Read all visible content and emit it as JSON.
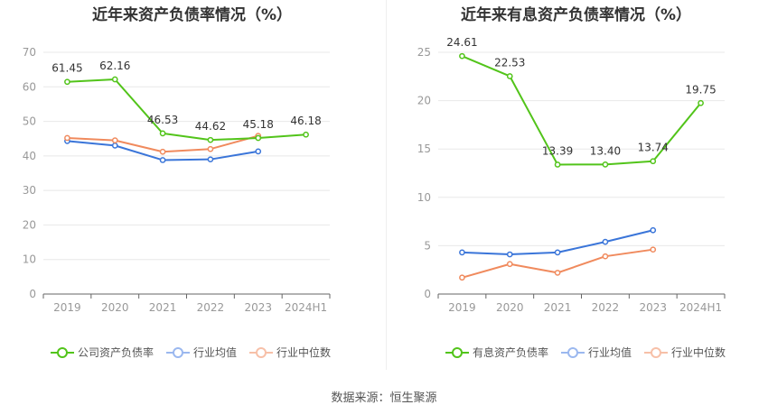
{
  "chart_data": [
    {
      "type": "line",
      "title": "近年来资产负债率情况（%）",
      "categories": [
        "2019",
        "2020",
        "2021",
        "2022",
        "2023",
        "2024H1"
      ],
      "ylim": [
        0,
        70
      ],
      "yticks": [
        0,
        10,
        20,
        30,
        40,
        50,
        60,
        70
      ],
      "series": [
        {
          "name": "公司资产负债率",
          "color": "#52c41a",
          "values": [
            61.45,
            62.16,
            46.53,
            44.62,
            45.18,
            46.18
          ],
          "labels": [
            "61.45",
            "62.16",
            "46.53",
            "44.62",
            "45.18",
            "46.18"
          ]
        },
        {
          "name": "行业均值",
          "color": "#3a75d9",
          "values": [
            44.3,
            43.0,
            38.8,
            39.0,
            41.3,
            null
          ]
        },
        {
          "name": "行业中位数",
          "color": "#f08a5d",
          "values": [
            45.2,
            44.5,
            41.2,
            42.0,
            45.8,
            null
          ]
        }
      ]
    },
    {
      "type": "line",
      "title": "近年来有息资产负债率情况（%）",
      "categories": [
        "2019",
        "2020",
        "2021",
        "2022",
        "2023",
        "2024H1"
      ],
      "ylim": [
        0,
        25
      ],
      "yticks": [
        0,
        5,
        10,
        15,
        20,
        25
      ],
      "series": [
        {
          "name": "有息资产负债率",
          "color": "#52c41a",
          "values": [
            24.61,
            22.53,
            13.39,
            13.4,
            13.74,
            19.75
          ],
          "labels": [
            "24.61",
            "22.53",
            "13.39",
            "13.40",
            "13.74",
            "19.75"
          ]
        },
        {
          "name": "行业均值",
          "color": "#3a75d9",
          "values": [
            4.3,
            4.1,
            4.3,
            5.4,
            6.6,
            null
          ]
        },
        {
          "name": "行业中位数",
          "color": "#f08a5d",
          "values": [
            1.7,
            3.1,
            2.2,
            3.9,
            4.6,
            null
          ]
        }
      ]
    }
  ],
  "source": "数据来源：恒生聚源"
}
